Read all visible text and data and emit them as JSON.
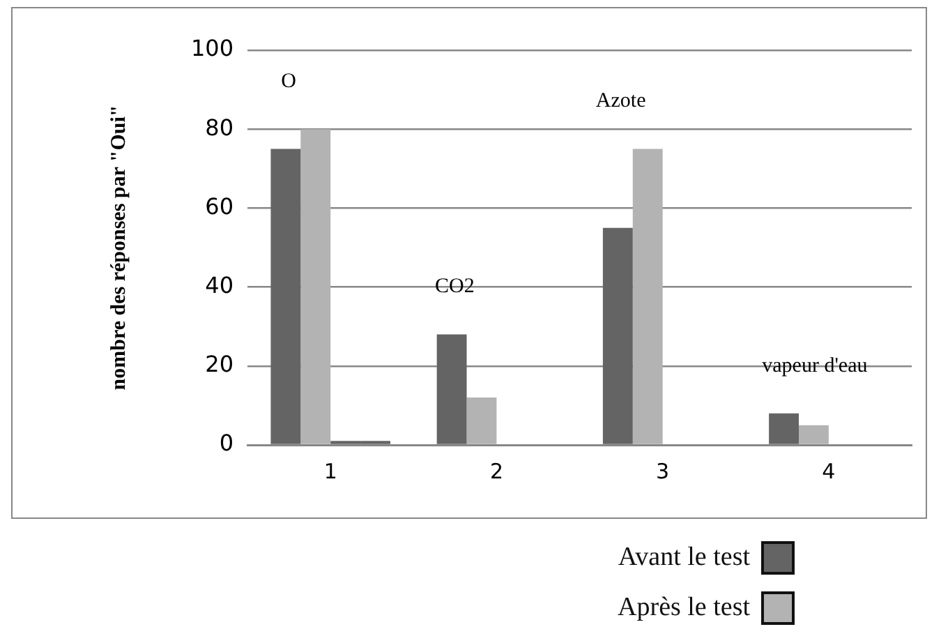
{
  "chart_data": {
    "type": "bar",
    "ylabel": "nombre des réponses par \"Oui\"",
    "categories": [
      "1",
      "2",
      "3",
      "4"
    ],
    "series": [
      {
        "name": "Avant le test",
        "color": "#646464",
        "values": [
          75,
          28,
          55,
          8
        ]
      },
      {
        "name": "Après le test",
        "color": "#b3b3b3",
        "values": [
          80,
          12,
          75,
          5
        ]
      },
      {
        "color": "#646464",
        "values": [
          1,
          null,
          null,
          null
        ]
      },
      {
        "color": "#646464",
        "values": [
          1,
          null,
          null,
          null
        ]
      }
    ],
    "ylim": [
      0,
      100
    ],
    "yticks": [
      0,
      20,
      40,
      60,
      80,
      100
    ],
    "grid": "y",
    "legend": "bottom right",
    "annotations": [
      "O",
      "CO2",
      "Azote",
      "vapeur d'eau"
    ]
  }
}
